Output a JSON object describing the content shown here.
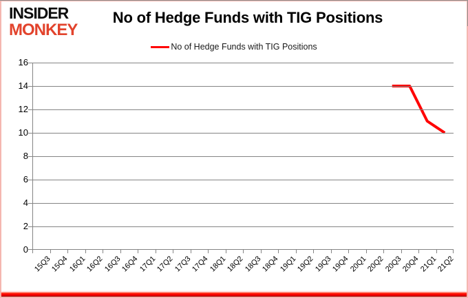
{
  "branding": {
    "logo_line1": "INSIDER",
    "logo_line2": "MONKEY"
  },
  "header": {
    "title": "No of Hedge Funds with TIG Positions"
  },
  "legend": {
    "label": "No of Hedge Funds with TIG Positions",
    "color": "#ff0000"
  },
  "colors": {
    "series": "#ff0000",
    "grid": "#848484",
    "logo_red": "#e2432c",
    "accent_bar": "#ff0000",
    "border": "#f5b7b0"
  },
  "chart_data": {
    "type": "line",
    "title": "No of Hedge Funds with TIG Positions",
    "categories": [
      "15Q3",
      "15Q4",
      "16Q1",
      "16Q2",
      "16Q3",
      "16Q4",
      "17Q1",
      "17Q2",
      "17Q3",
      "17Q4",
      "18Q1",
      "18Q2",
      "18Q3",
      "18Q4",
      "19Q1",
      "19Q2",
      "19Q3",
      "19Q4",
      "20Q1",
      "20Q2",
      "20Q3",
      "20Q4",
      "21Q1",
      "21Q2"
    ],
    "series": [
      {
        "name": "No of Hedge Funds with TIG Positions",
        "color": "#ff0000",
        "values": [
          null,
          null,
          null,
          null,
          null,
          null,
          null,
          null,
          null,
          null,
          null,
          null,
          null,
          null,
          null,
          null,
          null,
          null,
          null,
          null,
          14,
          14,
          11,
          10
        ]
      }
    ],
    "xlabel": "",
    "ylabel": "",
    "ylim": [
      0,
      16
    ],
    "ytick_step": 2,
    "grid": "horizontal",
    "legend_position": "top-center",
    "x_label_rotation": -45
  }
}
